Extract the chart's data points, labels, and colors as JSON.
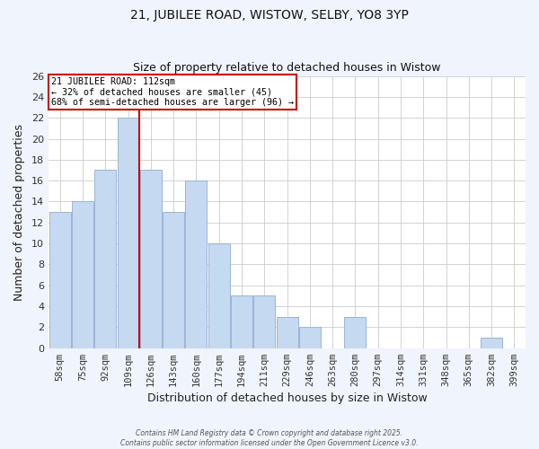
{
  "title": "21, JUBILEE ROAD, WISTOW, SELBY, YO8 3YP",
  "subtitle": "Size of property relative to detached houses in Wistow",
  "xlabel": "Distribution of detached houses by size in Wistow",
  "ylabel": "Number of detached properties",
  "bar_labels": [
    "58sqm",
    "75sqm",
    "92sqm",
    "109sqm",
    "126sqm",
    "143sqm",
    "160sqm",
    "177sqm",
    "194sqm",
    "211sqm",
    "229sqm",
    "246sqm",
    "263sqm",
    "280sqm",
    "297sqm",
    "314sqm",
    "331sqm",
    "348sqm",
    "365sqm",
    "382sqm",
    "399sqm"
  ],
  "bar_values": [
    13,
    14,
    17,
    22,
    17,
    13,
    16,
    10,
    5,
    5,
    3,
    2,
    0,
    3,
    0,
    0,
    0,
    0,
    0,
    1,
    0
  ],
  "bar_color": "#c5d9f1",
  "bar_edge_color": "#9ab5d8",
  "vline_color": "#cc0000",
  "ylim": [
    0,
    26
  ],
  "yticks": [
    0,
    2,
    4,
    6,
    8,
    10,
    12,
    14,
    16,
    18,
    20,
    22,
    24,
    26
  ],
  "annotation_line1": "21 JUBILEE ROAD: 112sqm",
  "annotation_line2": "← 32% of detached houses are smaller (45)",
  "annotation_line3": "68% of semi-detached houses are larger (96) →",
  "annotation_box_color": "#ffffff",
  "annotation_box_edge": "#cc0000",
  "plot_bg_color": "#ffffff",
  "fig_bg_color": "#f0f4fc",
  "footer_line1": "Contains HM Land Registry data © Crown copyright and database right 2025.",
  "footer_line2": "Contains public sector information licensed under the Open Government Licence v3.0."
}
